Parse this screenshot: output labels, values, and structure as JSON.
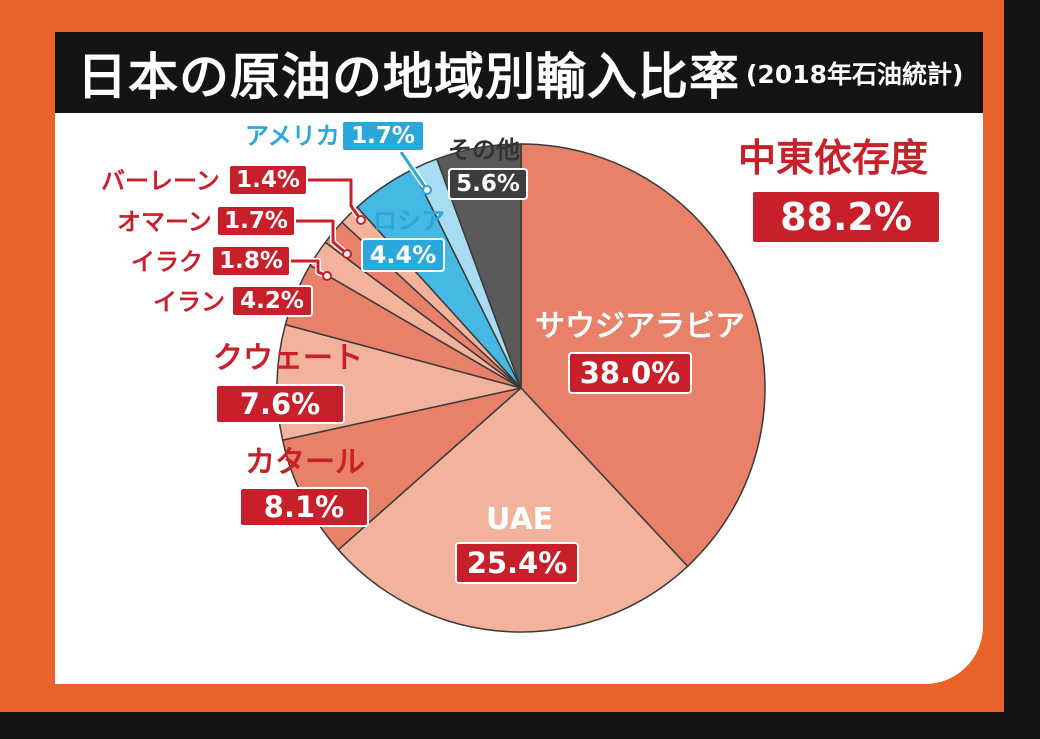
{
  "title": "日本の原油の地域別輸入比率",
  "subtitle": "(2018年石油統計)",
  "highlight": {
    "label": "中東依存度",
    "value": "88.2%"
  },
  "colors": {
    "background": "#e8622a",
    "saudi": "#e8806a",
    "uae": "#f2b29c",
    "qatar": "#e8806a",
    "kuwait": "#f2b29c",
    "iran": "#e8806a",
    "iraq": "#f2b29c",
    "oman": "#e8806a",
    "bahrain": "#f2b29c",
    "russia": "#46b8e4",
    "america": "#a8dcf2",
    "other": "#5a5a5a",
    "accent_red": "#c8202a",
    "accent_blue": "#2aa8dc"
  },
  "chart_data": {
    "type": "pie",
    "title": "日本の原油の地域別輸入比率",
    "subtitle": "(2018年石油統計)",
    "start": "12 o'clock",
    "direction": "clockwise",
    "slices": [
      {
        "name": "サウジアラビア",
        "value": 38.0,
        "label": "38.0%",
        "color": "#e8806a",
        "region": "middle-east"
      },
      {
        "name": "UAE",
        "value": 25.4,
        "label": "25.4%",
        "color": "#f2b29c",
        "region": "middle-east"
      },
      {
        "name": "カタール",
        "value": 8.1,
        "label": "8.1%",
        "color": "#e8806a",
        "region": "middle-east"
      },
      {
        "name": "クウェート",
        "value": 7.6,
        "label": "7.6%",
        "color": "#f2b29c",
        "region": "middle-east"
      },
      {
        "name": "イラン",
        "value": 4.2,
        "label": "4.2%",
        "color": "#e8806a",
        "region": "middle-east"
      },
      {
        "name": "イラク",
        "value": 1.8,
        "label": "1.8%",
        "color": "#f2b29c",
        "region": "middle-east"
      },
      {
        "name": "オマーン",
        "value": 1.7,
        "label": "1.7%",
        "color": "#e8806a",
        "region": "middle-east"
      },
      {
        "name": "バーレーン",
        "value": 1.4,
        "label": "1.4%",
        "color": "#f2b29c",
        "region": "middle-east"
      },
      {
        "name": "ロシア",
        "value": 4.4,
        "label": "4.4%",
        "color": "#46b8e4",
        "region": "other"
      },
      {
        "name": "アメリカ",
        "value": 1.7,
        "label": "1.7%",
        "color": "#a8dcf2",
        "region": "other"
      },
      {
        "name": "その他",
        "value": 5.6,
        "label": "5.6%",
        "color": "#5a5a5a",
        "region": "other"
      }
    ]
  }
}
